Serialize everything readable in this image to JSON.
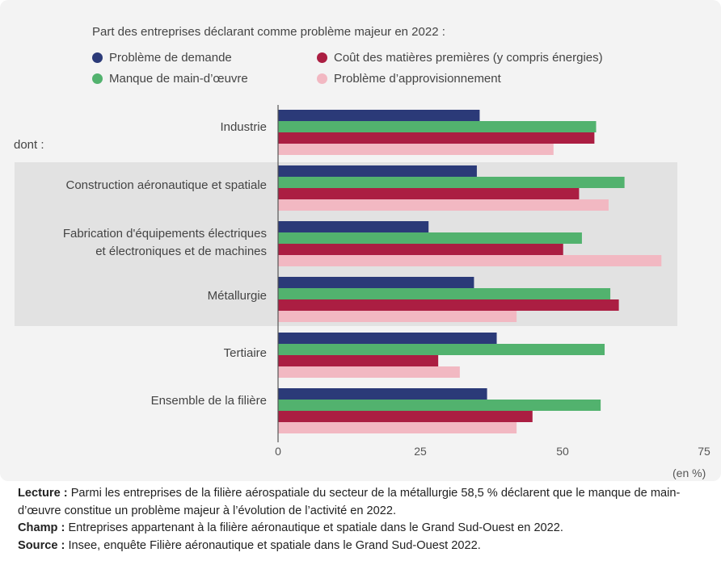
{
  "colors": {
    "demande": "#2b3a78",
    "matieres": "#ab1e42",
    "main_oeuvre": "#52b26e",
    "approvisionnement": "#f2b8c2"
  },
  "legend": {
    "title": "Part des entreprises déclarant comme problème majeur en 2022 :",
    "items": [
      {
        "label": "Problème de demande"
      },
      {
        "label": "Coût des matières premières (y compris énergies)"
      },
      {
        "label": "Manque de main-d’œuvre"
      },
      {
        "label": "Problème d’approvisionnement"
      }
    ]
  },
  "dont_label": "dont :",
  "category_lines": [
    [
      "Industrie"
    ],
    [
      "Construction aéronautique et spatiale"
    ],
    [
      "Fabrication d'équipements électriques",
      "et électroniques et de machines"
    ],
    [
      "Métallurgie"
    ],
    [
      "Tertiaire"
    ],
    [
      "Ensemble de la filière"
    ]
  ],
  "axis": {
    "ticks": [
      "0",
      "25",
      "50",
      "75"
    ],
    "unit": "(en %)"
  },
  "chart_data": {
    "type": "bar",
    "orientation": "horizontal",
    "title": "Part des entreprises déclarant comme problème majeur en 2022 :",
    "xlabel": "(en %)",
    "xlim": [
      0,
      75
    ],
    "categories": [
      "Industrie",
      "Construction aéronautique et spatiale",
      "Fabrication d'équipements électriques et électroniques et de machines",
      "Métallurgie",
      "Tertiaire",
      "Ensemble de la filière"
    ],
    "series": [
      {
        "name": "Problème de demande",
        "color_key": "demande",
        "values": [
          35.5,
          35.0,
          26.5,
          34.5,
          38.5,
          36.8
        ]
      },
      {
        "name": "Manque de main-d’œuvre",
        "color_key": "main_oeuvre",
        "values": [
          56.0,
          61.0,
          53.5,
          58.5,
          57.5,
          56.8
        ]
      },
      {
        "name": "Coût des matières premières (y compris énergies)",
        "color_key": "matieres",
        "values": [
          55.7,
          53.0,
          50.2,
          60.0,
          28.2,
          44.8
        ]
      },
      {
        "name": "Problème d’approvisionnement",
        "color_key": "approvisionnement",
        "values": [
          48.5,
          58.2,
          67.5,
          42.0,
          32.0,
          42.0
        ]
      }
    ]
  },
  "notes": {
    "lecture_label": "Lecture :",
    "lecture_text": "Parmi les entreprises de la filière aérospatiale du secteur de la métallurgie 58,5 % déclarent que le manque de main-d’œuvre constitue un problème majeur à l’évolution de l’activité en 2022.",
    "champ_label": "Champ :",
    "champ_text": "Entreprises appartenant à la filière aéronautique et spatiale dans le Grand Sud-Ouest en 2022.",
    "source_label": "Source :",
    "source_text": "Insee, enquête Filière aéronautique et spatiale dans le Grand Sud-Ouest 2022."
  }
}
